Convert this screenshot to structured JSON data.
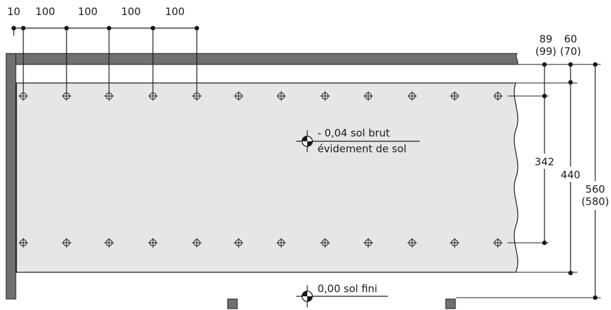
{
  "top_dimensions": [
    "10",
    "100",
    "100",
    "100",
    "100"
  ],
  "right_dimensions": {
    "d89": "89",
    "d89_alt": "(99)",
    "d60": "60",
    "d60_alt": "(70)",
    "d342": "342",
    "d440": "440",
    "d560": "560",
    "d560_alt": "(580)"
  },
  "levels": {
    "upper_line1": "- 0,04 sol brut",
    "upper_line2": "évidement de sol",
    "lower": "0,00 sol fini"
  },
  "colors": {
    "wall": "#707070",
    "recess": "#e6e6e6",
    "line": "#1a1a1a"
  }
}
